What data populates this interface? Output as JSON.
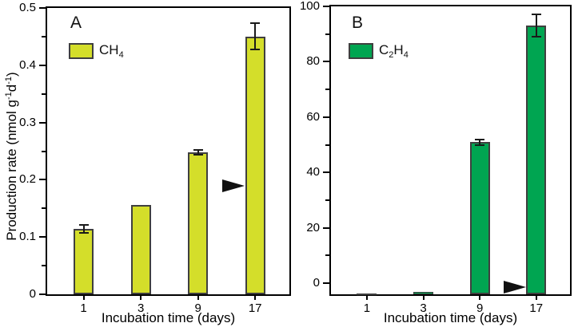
{
  "figure": {
    "background": "#ffffff",
    "axis_color": "#000000",
    "y_axis_title_plain": "Production rate (nmol g-1d-1)",
    "y_axis_title_segments": [
      {
        "text": "Production rate (nmol g",
        "style": "normal"
      },
      {
        "text": "-1",
        "style": "sup"
      },
      {
        "text": "d",
        "style": "normal"
      },
      {
        "text": "-1",
        "style": "sup"
      },
      {
        "text": ")",
        "style": "normal"
      }
    ]
  },
  "chart_data": [
    {
      "type": "bar",
      "panel_label": "A",
      "legend_label_plain": "CH4",
      "legend_segments": [
        {
          "text": "CH",
          "style": "normal"
        },
        {
          "text": "4",
          "style": "sub"
        }
      ],
      "categories": [
        "1",
        "3",
        "9",
        "17"
      ],
      "values": [
        0.114,
        0.156,
        0.248,
        0.45
      ],
      "errors": [
        0.007,
        0.002,
        0.004,
        0.023
      ],
      "xlabel": "Incubation time (days)",
      "ylabel": "Production rate (nmol g-1d-1)",
      "ylim": [
        0,
        0.5
      ],
      "y_ticks": [
        {
          "v": 0,
          "label": "0"
        },
        {
          "v": 0.1,
          "label": "0.1"
        },
        {
          "v": 0.2,
          "label": "0.2"
        },
        {
          "v": 0.3,
          "label": "0.3"
        },
        {
          "v": 0.4,
          "label": "0.4"
        },
        {
          "v": 0.5,
          "label": "0.5"
        }
      ],
      "y_minor_ticks": [
        0.05,
        0.15,
        0.25,
        0.35,
        0.45
      ],
      "bar_color": "#d4de2a",
      "bar_border_color": "#3f3f3f",
      "arrow_marker": {
        "value": 0.19,
        "before_category_index": 3
      },
      "legend_position": "top-left",
      "grid": false
    },
    {
      "type": "bar",
      "panel_label": "B",
      "legend_label_plain": "C2H4",
      "legend_segments": [
        {
          "text": "C",
          "style": "normal"
        },
        {
          "text": "2",
          "style": "sub"
        },
        {
          "text": "H",
          "style": "normal"
        },
        {
          "text": "4",
          "style": "sub"
        }
      ],
      "categories": [
        "1",
        "3",
        "9",
        "17"
      ],
      "values": [
        0.3,
        0.9,
        55,
        97
      ],
      "errors": [
        0,
        0,
        1,
        4
      ],
      "xlabel": "Incubation time (days)",
      "ylabel": "",
      "ylim": [
        -4,
        100
      ],
      "y_ticks": [
        {
          "v": 0,
          "label": "0"
        },
        {
          "v": 20,
          "label": "20"
        },
        {
          "v": 40,
          "label": "40"
        },
        {
          "v": 60,
          "label": "60"
        },
        {
          "v": 80,
          "label": "80"
        },
        {
          "v": 100,
          "label": "100"
        }
      ],
      "y_minor_ticks": [
        10,
        30,
        50,
        70,
        90
      ],
      "bar_color": "#00a551",
      "bar_border_color": "#3f3f3f",
      "arrow_marker": {
        "value": -1.5,
        "before_category_index": 3
      },
      "legend_position": "top-left",
      "grid": false
    }
  ]
}
